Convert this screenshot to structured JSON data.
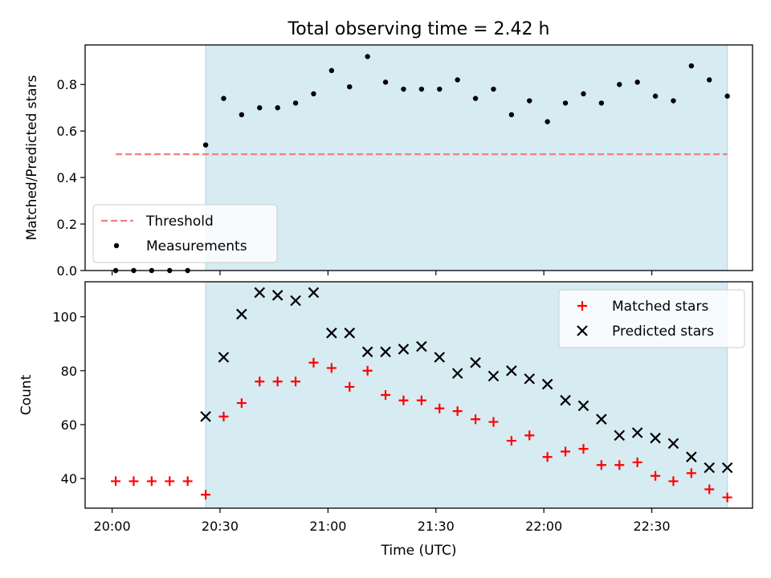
{
  "title": "Total observing time = 2.42 h",
  "chart_data": [
    {
      "type": "scatter",
      "ylabel": "Matched/Predicted stars",
      "xlabel": "",
      "ylim": [
        0,
        0.97
      ],
      "yticks": [
        0.0,
        0.2,
        0.4,
        0.6,
        0.8
      ],
      "ytick_labels": [
        "0.0",
        "0.2",
        "0.4",
        "0.6",
        "0.8"
      ],
      "x_unit": "minutes after 20:00 UTC",
      "xlim": [
        -7.5,
        178
      ],
      "xticks": [
        0,
        30,
        60,
        90,
        120,
        150
      ],
      "observing_window": {
        "start": "20:26",
        "end": "22:51",
        "color": "#add8e6"
      },
      "threshold": {
        "name": "Threshold",
        "value": 0.5,
        "x_start": "20:01",
        "x_end": "22:51",
        "color": "#f08080",
        "style": "dashed"
      },
      "series": [
        {
          "name": "Measurements",
          "marker": "dot",
          "color": "#000000",
          "x": [
            1,
            6,
            11,
            16,
            21,
            26,
            31,
            36,
            41,
            46,
            51,
            56,
            61,
            66,
            71,
            76,
            81,
            86,
            91,
            96,
            101,
            106,
            111,
            116,
            121,
            126,
            131,
            136,
            141,
            146,
            151,
            156,
            161,
            166,
            171
          ],
          "values": [
            0,
            0,
            0,
            0,
            0,
            0.54,
            0.74,
            0.67,
            0.7,
            0.7,
            0.72,
            0.76,
            0.86,
            0.79,
            0.92,
            0.81,
            0.78,
            0.78,
            0.78,
            0.82,
            0.74,
            0.78,
            0.67,
            0.73,
            0.64,
            0.72,
            0.76,
            0.72,
            0.8,
            0.81,
            0.75,
            0.73,
            0.88,
            0.82,
            0.75
          ]
        }
      ],
      "legend": {
        "position": "lower-left",
        "entries": [
          "Threshold",
          "Measurements"
        ]
      }
    },
    {
      "type": "scatter",
      "ylabel": "Count",
      "xlabel": "Time (UTC)",
      "ylim": [
        29,
        113
      ],
      "yticks": [
        40,
        60,
        80,
        100
      ],
      "ytick_labels": [
        "40",
        "60",
        "80",
        "100"
      ],
      "x_unit": "minutes after 20:00 UTC",
      "xlim": [
        -7.5,
        178
      ],
      "xticks": [
        0,
        30,
        60,
        90,
        120,
        150
      ],
      "xtick_labels": [
        "20:00",
        "20:30",
        "21:00",
        "21:30",
        "22:00",
        "22:30"
      ],
      "observing_window": {
        "start": "20:26",
        "end": "22:51",
        "color": "#add8e6"
      },
      "series": [
        {
          "name": "Matched stars",
          "marker": "plus",
          "color": "#ff0000",
          "x": [
            1,
            6,
            11,
            16,
            21,
            26,
            31,
            36,
            41,
            46,
            51,
            56,
            61,
            66,
            71,
            76,
            81,
            86,
            91,
            96,
            101,
            106,
            111,
            116,
            121,
            126,
            131,
            136,
            141,
            146,
            151,
            156,
            161,
            166,
            171
          ],
          "values": [
            39,
            39,
            39,
            39,
            39,
            34,
            63,
            68,
            76,
            76,
            76,
            83,
            81,
            74,
            80,
            71,
            69,
            69,
            66,
            65,
            62,
            61,
            54,
            56,
            48,
            50,
            51,
            45,
            45,
            46,
            41,
            39,
            42,
            36,
            33
          ]
        },
        {
          "name": "Predicted stars",
          "marker": "x",
          "color": "#000000",
          "x": [
            26,
            31,
            36,
            41,
            46,
            51,
            56,
            61,
            66,
            71,
            76,
            81,
            86,
            91,
            96,
            101,
            106,
            111,
            116,
            121,
            126,
            131,
            136,
            141,
            146,
            151,
            156,
            161,
            166,
            171
          ],
          "values": [
            63,
            85,
            101,
            109,
            108,
            106,
            109,
            94,
            94,
            87,
            87,
            88,
            89,
            85,
            79,
            83,
            78,
            80,
            77,
            75,
            69,
            67,
            62,
            56,
            57,
            55,
            53,
            48,
            44,
            44
          ]
        }
      ],
      "legend": {
        "position": "top-right",
        "entries": [
          "Matched stars",
          "Predicted stars"
        ]
      }
    }
  ]
}
